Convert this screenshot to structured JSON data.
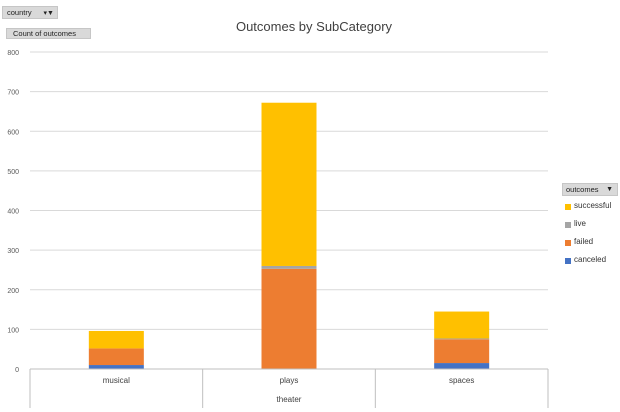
{
  "filter_button": {
    "label": "country"
  },
  "values_button": {
    "label": "Count of outcomes"
  },
  "legend_button": {
    "label": "outcomes"
  },
  "chart_data": {
    "type": "bar",
    "stacked": true,
    "title": "Outcomes by SubCategory",
    "categories": [
      "musical",
      "plays",
      "spaces"
    ],
    "group_label": "theater",
    "ylim": [
      0,
      800
    ],
    "yticks": [
      "0",
      "100",
      "200",
      "300",
      "400",
      "500",
      "600",
      "700",
      "800"
    ],
    "grid": true,
    "legend_position": "right",
    "series": [
      {
        "name": "canceled",
        "color": "#4472c4",
        "values": [
          10,
          0,
          15
        ]
      },
      {
        "name": "failed",
        "color": "#ed7d31",
        "values": [
          42,
          253,
          60
        ]
      },
      {
        "name": "live",
        "color": "#a5a5a5",
        "values": [
          0,
          7,
          2
        ]
      },
      {
        "name": "successful",
        "color": "#ffc000",
        "values": [
          44,
          412,
          68
        ]
      }
    ]
  }
}
